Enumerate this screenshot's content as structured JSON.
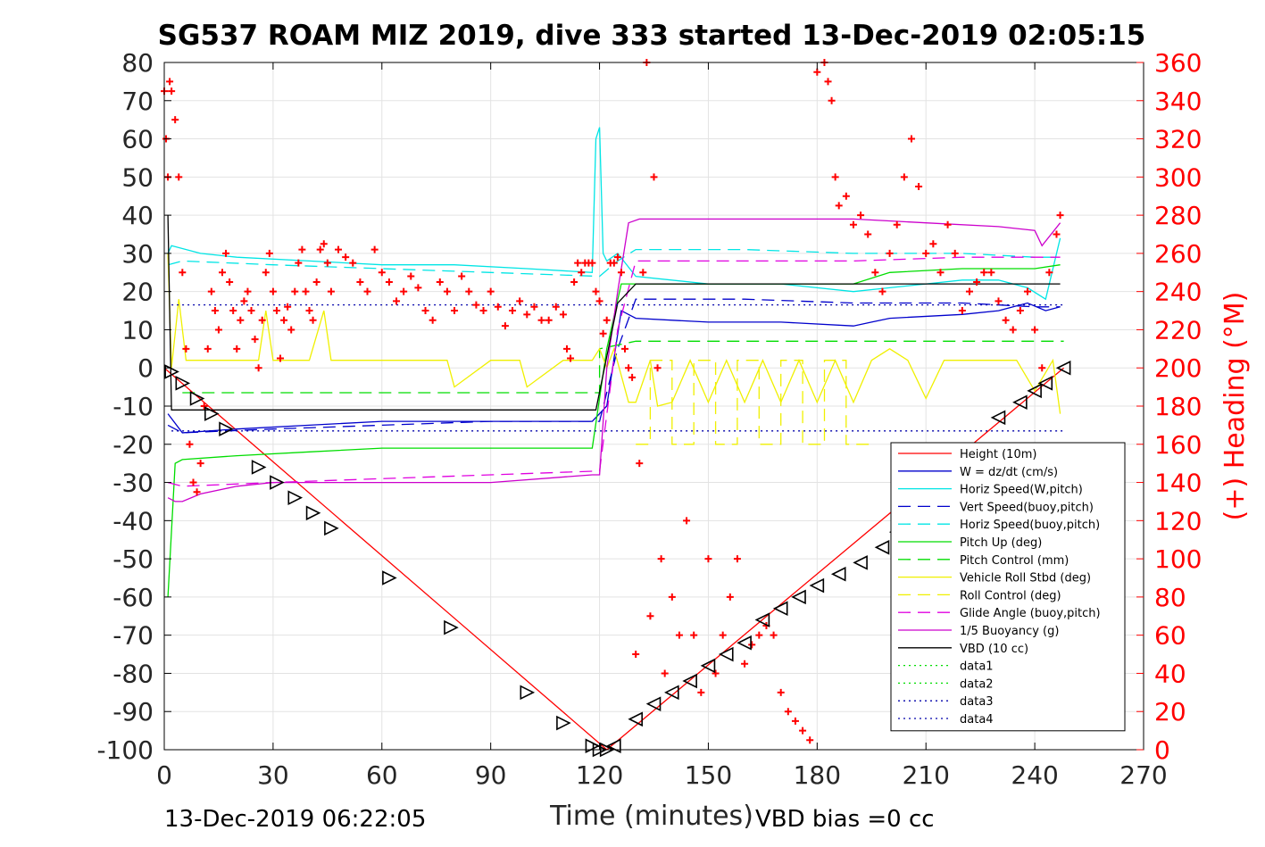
{
  "chart_data": {
    "type": "line",
    "title": "SG537 ROAM MIZ 2019, dive 333 started 13-Dec-2019 02:05:15",
    "xlabel": "Time (minutes)",
    "ylabel": "",
    "y2label": "(+) Heading (°M)",
    "xlim": [
      0,
      270
    ],
    "ylim": [
      -100,
      80
    ],
    "y2lim": [
      0,
      360
    ],
    "xticks": [
      0,
      30,
      60,
      90,
      120,
      150,
      180,
      210,
      240,
      270
    ],
    "yticks": [
      -100,
      -90,
      -80,
      -70,
      -60,
      -50,
      -40,
      -30,
      -20,
      -10,
      0,
      10,
      20,
      30,
      40,
      50,
      60,
      70,
      80
    ],
    "y2ticks": [
      0,
      20,
      40,
      60,
      80,
      100,
      120,
      140,
      160,
      180,
      200,
      220,
      240,
      260,
      280,
      300,
      320,
      340,
      360
    ],
    "grid": true,
    "legend_position": "lower-right",
    "footer_left": "13-Dec-2019 06:22:05",
    "footer_right": "VBD bias =0 cc",
    "legend": [
      {
        "name": "Height (10m)",
        "color": "#ff0000",
        "dash": "solid"
      },
      {
        "name": "W = dz/dt (cm/s)",
        "color": "#0000cc",
        "dash": "solid"
      },
      {
        "name": "Horiz Speed(W,pitch)",
        "color": "#00e5e5",
        "dash": "solid"
      },
      {
        "name": "Vert Speed(buoy,pitch)",
        "color": "#0000cc",
        "dash": "dashed"
      },
      {
        "name": "Horiz Speed(buoy,pitch)",
        "color": "#00e5e5",
        "dash": "dashed"
      },
      {
        "name": "Pitch Up (deg)",
        "color": "#00dd00",
        "dash": "solid"
      },
      {
        "name": "Pitch Control (mm)",
        "color": "#00dd00",
        "dash": "dashed"
      },
      {
        "name": "Vehicle Roll Stbd (deg)",
        "color": "#f0f000",
        "dash": "solid"
      },
      {
        "name": "Roll Control (deg)",
        "color": "#f0f000",
        "dash": "dashed"
      },
      {
        "name": "Glide Angle (buoy,pitch)",
        "color": "#e000e0",
        "dash": "dashed"
      },
      {
        "name": "1/5 Buoyancy (g)",
        "color": "#cc00cc",
        "dash": "solid"
      },
      {
        "name": "VBD (10 cc)",
        "color": "#000000",
        "dash": "solid"
      },
      {
        "name": "data1",
        "color": "#00dd00",
        "dash": "dotted"
      },
      {
        "name": "data2",
        "color": "#00dd00",
        "dash": "dotted"
      },
      {
        "name": "data3",
        "color": "#0000aa",
        "dash": "dotted"
      },
      {
        "name": "data4",
        "color": "#0000aa",
        "dash": "dotted"
      }
    ],
    "series": [
      {
        "name": "Height (10m)",
        "axis": "left",
        "style": "line",
        "color": "#ff0000",
        "x": [
          0,
          122,
          122,
          248
        ],
        "y": [
          0,
          -100,
          -100,
          0
        ]
      },
      {
        "name": "W = dz/dt (cm/s)",
        "axis": "left",
        "style": "line",
        "color": "#0000cc",
        "x": [
          1,
          5,
          20,
          40,
          60,
          80,
          100,
          118,
          122,
          126,
          130,
          150,
          170,
          190,
          195,
          200,
          220,
          230,
          238,
          243,
          247
        ],
        "y": [
          -12,
          -17,
          -16,
          -15,
          -14,
          -14,
          -14,
          -14,
          -10,
          15,
          13,
          12,
          12,
          11,
          12,
          13,
          14,
          15,
          17,
          15,
          16
        ]
      },
      {
        "name": "Horiz Speed(W,pitch)",
        "axis": "left",
        "style": "line",
        "color": "#00e5e5",
        "x": [
          1,
          2,
          10,
          20,
          40,
          60,
          80,
          100,
          118,
          119,
          120,
          121,
          122,
          125,
          130,
          150,
          170,
          190,
          200,
          210,
          220,
          230,
          238,
          243,
          247
        ],
        "y": [
          30,
          32,
          30,
          29,
          28,
          27,
          27,
          26,
          25,
          60,
          63,
          30,
          28,
          30,
          24,
          22,
          22,
          20,
          21,
          22,
          23,
          23,
          21,
          18,
          34
        ]
      },
      {
        "name": "Vert Speed(buoy,pitch)",
        "axis": "left",
        "style": "dashed",
        "color": "#0000cc",
        "x": [
          1,
          5,
          30,
          60,
          90,
          120,
          125,
          130,
          160,
          190,
          220,
          240,
          247
        ],
        "y": [
          -15,
          -17,
          -16,
          -15,
          -14,
          -14,
          5,
          18,
          18,
          17,
          17,
          16,
          16
        ]
      },
      {
        "name": "Horiz Speed(buoy,pitch)",
        "axis": "left",
        "style": "dashed",
        "color": "#00e5e5",
        "x": [
          1,
          5,
          30,
          60,
          90,
          120,
          125,
          130,
          160,
          190,
          220,
          240,
          247
        ],
        "y": [
          27,
          28,
          27,
          26,
          25,
          24,
          28,
          31,
          31,
          30,
          30,
          29,
          29
        ]
      },
      {
        "name": "Pitch Up (deg)",
        "axis": "left",
        "style": "line",
        "color": "#00dd00",
        "x": [
          1,
          3,
          5,
          20,
          40,
          60,
          80,
          100,
          118,
          122,
          126,
          130,
          160,
          190,
          200,
          220,
          240,
          247
        ],
        "y": [
          -60,
          -25,
          -24,
          -23,
          -22,
          -21,
          -21,
          -21,
          -21,
          5,
          22,
          22,
          22,
          22,
          25,
          26,
          26,
          27
        ]
      },
      {
        "name": "Pitch Control (mm)",
        "axis": "left",
        "style": "dashed",
        "color": "#00dd00",
        "x": [
          5,
          120,
          120,
          130,
          248
        ],
        "y": [
          -6.5,
          -6.5,
          5,
          7,
          7
        ]
      },
      {
        "name": "Vehicle Roll Stbd (deg)",
        "axis": "left",
        "style": "line",
        "color": "#f0f000",
        "x": [
          1,
          2,
          4,
          6,
          8,
          10,
          12,
          14,
          16,
          20,
          26,
          28,
          30,
          34,
          40,
          44,
          46,
          50,
          60,
          70,
          78,
          80,
          90,
          98,
          100,
          110,
          118,
          120,
          122,
          124,
          128,
          130,
          134,
          136,
          140,
          145,
          150,
          155,
          160,
          165,
          170,
          175,
          180,
          185,
          190,
          195,
          200,
          205,
          210,
          215,
          220,
          225,
          230,
          235,
          240,
          245,
          247
        ],
        "y": [
          30,
          0,
          18,
          2,
          2,
          2,
          2,
          2,
          2,
          2,
          2,
          15,
          2,
          2,
          2,
          15,
          2,
          2,
          2,
          2,
          2,
          -5,
          2,
          2,
          -5,
          2,
          2,
          5,
          0,
          5,
          -9,
          -9,
          2,
          -10,
          -9,
          2,
          -9,
          2,
          -9,
          2,
          -9,
          2,
          -9,
          2,
          -9,
          2,
          5,
          2,
          -8,
          2,
          2,
          2,
          2,
          2,
          -6,
          2,
          -12
        ]
      },
      {
        "name": "Roll Control (deg)",
        "axis": "left",
        "style": "dashed",
        "color": "#f0f000",
        "x": [
          130,
          134,
          134,
          140,
          140,
          146,
          146,
          152,
          152,
          158,
          158,
          164,
          164,
          170,
          170,
          176,
          176,
          182,
          182,
          188,
          188,
          196
        ],
        "y": [
          -20,
          -20,
          2,
          2,
          -20,
          -20,
          2,
          2,
          -20,
          -20,
          2,
          2,
          -20,
          -20,
          2,
          2,
          -20,
          -20,
          2,
          2,
          -20,
          -20
        ]
      },
      {
        "name": "Glide Angle (buoy,pitch)",
        "axis": "left",
        "style": "dashed",
        "color": "#e000e0",
        "x": [
          1,
          5,
          30,
          60,
          90,
          120,
          125,
          130,
          160,
          190,
          220,
          240,
          247
        ],
        "y": [
          -30,
          -31,
          -30,
          -29,
          -28,
          -27,
          10,
          28,
          28,
          28,
          29,
          29,
          29
        ]
      },
      {
        "name": "1/5 Buoyancy (g)",
        "axis": "left",
        "style": "line",
        "color": "#cc00cc",
        "x": [
          1,
          3,
          5,
          10,
          20,
          30,
          60,
          90,
          118,
          120,
          122,
          125,
          128,
          131,
          160,
          190,
          210,
          230,
          240,
          242,
          247
        ],
        "y": [
          -34,
          -35,
          -35,
          -33,
          -31,
          -30,
          -30,
          -30,
          -28,
          -28,
          0,
          20,
          38,
          39,
          39,
          39,
          38,
          37,
          36,
          32,
          38
        ]
      },
      {
        "name": "VBD (10 cc)",
        "axis": "left",
        "style": "line",
        "color": "#000000",
        "x": [
          1,
          2,
          5,
          118,
          119,
          125,
          130,
          247
        ],
        "y": [
          40,
          -11,
          -11,
          -11,
          -11,
          17,
          22,
          22
        ]
      },
      {
        "name": "data1",
        "axis": "left",
        "style": "dotted",
        "color": "#00dd00",
        "x": [
          0,
          0
        ],
        "y": [
          0,
          0
        ]
      },
      {
        "name": "data2",
        "axis": "left",
        "style": "dotted",
        "color": "#00dd00",
        "x": [
          0,
          0
        ],
        "y": [
          0,
          0
        ]
      },
      {
        "name": "data3",
        "axis": "left",
        "style": "dotted",
        "color": "#0000aa",
        "x": [
          2,
          248
        ],
        "y": [
          16.5,
          16.5
        ]
      },
      {
        "name": "data4",
        "axis": "left",
        "style": "dotted",
        "color": "#0000aa",
        "x": [
          2,
          248
        ],
        "y": [
          -16.5,
          -16.5
        ]
      },
      {
        "name": "Heading",
        "axis": "right",
        "style": "plus",
        "color": "#ff0000",
        "x": [
          0,
          0.5,
          1,
          1.5,
          2,
          3,
          4,
          5,
          6,
          7,
          8,
          9,
          10,
          11,
          12,
          13,
          14,
          15,
          16,
          17,
          18,
          19,
          20,
          21,
          22,
          23,
          24,
          25,
          26,
          27,
          28,
          29,
          30,
          31,
          32,
          33,
          34,
          35,
          36,
          37,
          38,
          39,
          40,
          41,
          42,
          43,
          44,
          45,
          46,
          48,
          50,
          52,
          54,
          56,
          58,
          60,
          62,
          64,
          66,
          68,
          70,
          72,
          74,
          76,
          78,
          80,
          82,
          84,
          86,
          88,
          90,
          92,
          94,
          96,
          98,
          100,
          102,
          104,
          106,
          108,
          110,
          111,
          112,
          113,
          114,
          115,
          116,
          117,
          118,
          119,
          120,
          121,
          122,
          123,
          124,
          125,
          126,
          127,
          128,
          129
        ],
        "y": [
          345,
          320,
          300,
          350,
          345,
          330,
          300,
          250,
          210,
          160,
          140,
          135,
          150,
          180,
          210,
          240,
          230,
          220,
          250,
          260,
          245,
          230,
          210,
          225,
          235,
          240,
          230,
          215,
          200,
          225,
          250,
          260,
          240,
          230,
          205,
          225,
          232,
          220,
          240,
          255,
          262,
          240,
          230,
          225,
          245,
          262,
          265,
          255,
          240,
          262,
          258,
          255,
          245,
          240,
          262,
          250,
          245,
          235,
          240,
          248,
          242,
          230,
          225,
          245,
          240,
          230,
          248,
          240,
          233,
          230,
          240,
          232,
          222,
          230,
          235,
          228,
          232,
          225,
          225,
          232,
          228,
          210,
          205,
          245,
          255,
          250,
          255,
          255,
          255,
          240,
          235,
          218,
          225,
          255,
          255,
          258,
          250,
          210,
          200,
          195
        ]
      },
      {
        "name": "Heading (ascent)",
        "axis": "right",
        "style": "plus",
        "color": "#ff0000",
        "x": [
          130,
          131,
          132,
          133,
          134,
          135,
          136,
          137,
          138,
          140,
          142,
          144,
          146,
          148,
          150,
          152,
          154,
          156,
          158,
          160,
          162,
          164,
          166,
          168,
          170,
          172,
          174,
          176,
          178,
          180,
          182,
          183,
          184,
          185,
          186,
          188,
          190,
          192,
          194,
          196,
          198,
          200,
          202,
          204,
          206,
          208,
          210,
          212,
          214,
          216,
          218,
          220,
          222,
          224,
          226,
          228,
          230,
          232,
          234,
          236,
          238,
          240,
          242,
          244,
          246,
          247
        ],
        "y": [
          50,
          150,
          250,
          360,
          70,
          300,
          200,
          100,
          40,
          80,
          60,
          120,
          60,
          30,
          100,
          40,
          60,
          80,
          100,
          45,
          55,
          60,
          65,
          60,
          30,
          20,
          15,
          10,
          5,
          355,
          360,
          350,
          340,
          300,
          285,
          290,
          275,
          280,
          270,
          250,
          240,
          260,
          275,
          300,
          320,
          295,
          260,
          265,
          250,
          275,
          260,
          230,
          240,
          245,
          250,
          250,
          235,
          225,
          220,
          230,
          240,
          220,
          200,
          250,
          270,
          280
        ]
      }
    ],
    "markers": {
      "name": "Height markers",
      "x": [
        2,
        5,
        9,
        13,
        17,
        26,
        31,
        36,
        41,
        46,
        62,
        79,
        100,
        110,
        118,
        120,
        122,
        124,
        130,
        135,
        140,
        145,
        150,
        155,
        160,
        165,
        170,
        175,
        180,
        186,
        192,
        198,
        202,
        230,
        236,
        240,
        243,
        248
      ],
      "y": [
        -1,
        -4,
        -8,
        -12,
        -16,
        -26,
        -30,
        -34,
        -38,
        -42,
        -55,
        -68,
        -85,
        -93,
        -99,
        -100,
        -100,
        -99,
        -92,
        -88,
        -85,
        -82,
        -78,
        -75,
        -72,
        -66,
        -63,
        -60,
        -57,
        -54,
        -51,
        -47,
        -43,
        -13,
        -9,
        -6,
        -4,
        0
      ]
    }
  }
}
